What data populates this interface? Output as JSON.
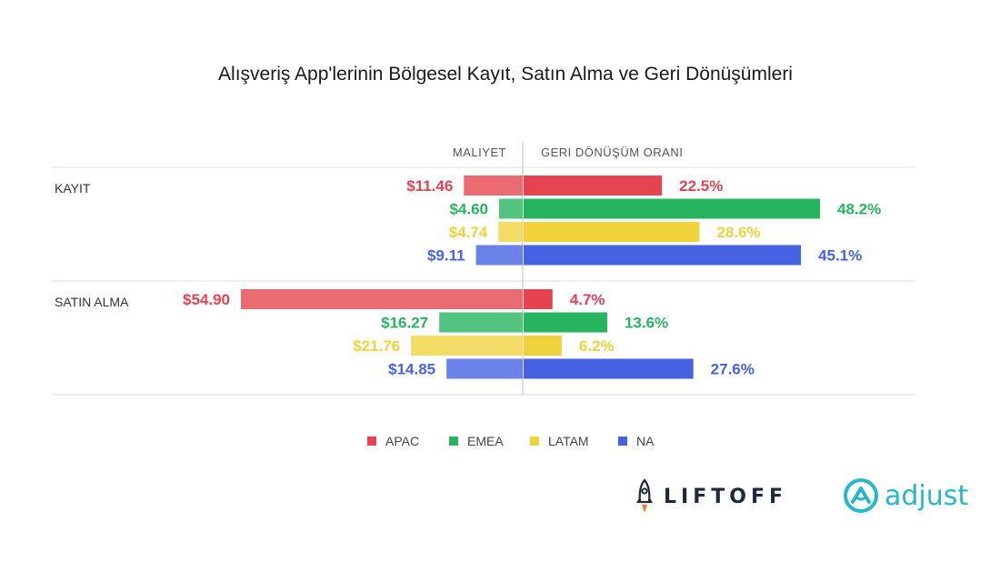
{
  "chart_data": {
    "type": "bar",
    "title": "Alışveriş App'lerinin Bölgesel Kayıt, Satın Alma ve Geri Dönüşümleri",
    "left_header": "MALIYET",
    "right_header": "GERI DÖNÜŞÜM ORANI",
    "series": [
      {
        "name": "APAC",
        "color": "#e5434f",
        "cost_color": "#ea6b72"
      },
      {
        "name": "EMEA",
        "color": "#27b45f",
        "cost_color": "#52c47f"
      },
      {
        "name": "LATAM",
        "color": "#f0d23a",
        "cost_color": "#f2dc66"
      },
      {
        "name": "NA",
        "color": "#4662e3",
        "cost_color": "#6b82e9"
      }
    ],
    "groups": [
      {
        "label": "KAYIT",
        "cost": [
          11.46,
          4.6,
          4.74,
          9.11
        ],
        "cost_labels": [
          "$11.46",
          "$4.60",
          "$4.74",
          "$9.11"
        ],
        "rate": [
          22.5,
          48.2,
          28.6,
          45.1
        ],
        "rate_labels": [
          "22.5%",
          "48.2%",
          "28.6%",
          "45.1%"
        ]
      },
      {
        "label": "SATIN ALMA",
        "cost": [
          54.9,
          16.27,
          21.76,
          14.85
        ],
        "cost_labels": [
          "$54.90",
          "$16.27",
          "$21.76",
          "$14.85"
        ],
        "rate": [
          4.7,
          13.6,
          6.2,
          27.6
        ],
        "rate_labels": [
          "4.7%",
          "13.6%",
          "6.2%",
          "27.6%"
        ]
      }
    ],
    "cost_max": 54.9,
    "rate_max": 48.2,
    "legend": [
      "APAC",
      "EMEA",
      "LATAM",
      "NA"
    ],
    "legend_position": "bottom-center"
  },
  "logos": {
    "liftoff": "LIFTOFF",
    "adjust": "adjust",
    "liftoff_icon": "rocket-icon",
    "adjust_icon": "adjust-a-icon"
  }
}
